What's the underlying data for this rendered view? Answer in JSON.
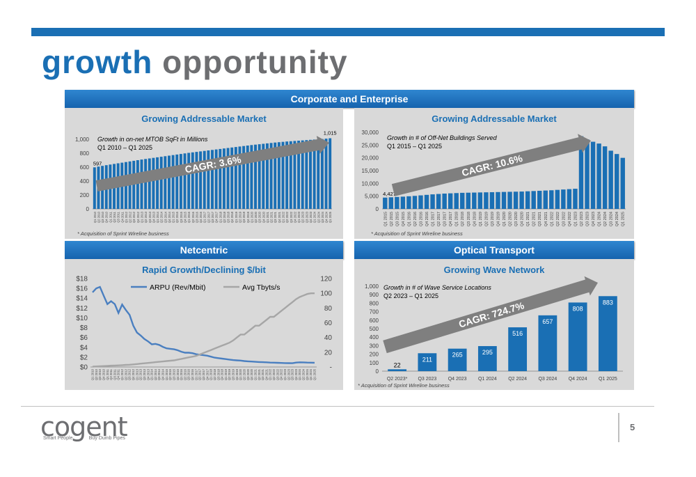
{
  "title": {
    "word1": "growth",
    "word2": "opportunity"
  },
  "headers": {
    "corporate": "Corporate and Enterprise",
    "netcentric": "Netcentric",
    "optical": "Optical Transport"
  },
  "footer": {
    "logo_text": "cogent",
    "tagline_left": "Smart People",
    "tagline_right": "Buy Dumb Pipes",
    "page_number": "5"
  },
  "colors": {
    "bar": "#1a6fb4",
    "line_arpu": "#4a7fc0",
    "line_tbyts": "#a6a6a6",
    "arrow": "#7f7f7f",
    "title_blue": "#1a6fb4"
  },
  "chart_data": [
    {
      "id": "mtob",
      "type": "bar",
      "title": "Growing Addressable Market",
      "annotation_line1": "Growth in on-net MTOB SqFt in Millions",
      "annotation_line2": "Q1 2010 – Q1 2025",
      "cagr": "CAGR: 3.6%",
      "footnote": "* Acquisition of Sprint Wireline business",
      "ylim": [
        0,
        1000
      ],
      "yticks": [
        0,
        200,
        400,
        600,
        800,
        "1,000"
      ],
      "first_label": "597",
      "last_label": "1,015",
      "categories": [
        "Q1 2010",
        "Q2 2010",
        "Q3 2010",
        "Q4 2010",
        "Q1 2011",
        "Q2 2011",
        "Q3 2011",
        "Q4 2011",
        "Q1 2012",
        "Q2 2012",
        "Q3 2012",
        "Q4 2012",
        "Q1 2013",
        "Q2 2013",
        "Q3 2013",
        "Q4 2013",
        "Q1 2014",
        "Q2 2014",
        "Q3 2014",
        "Q4 2014",
        "Q1 2015",
        "Q2 2015",
        "Q3 2015",
        "Q4 2015",
        "Q1 2016",
        "Q2 2016",
        "Q3 2016",
        "Q4 2016",
        "Q1 2017",
        "Q2 2017",
        "Q3 2017",
        "Q4 2017",
        "Q1 2018",
        "Q2 2018",
        "Q3 2018",
        "Q4 2018",
        "Q1 2019",
        "Q2 2019",
        "Q3 2019",
        "Q4 2019",
        "Q1 2020",
        "Q2 2020",
        "Q3 2020",
        "Q4 2020",
        "Q1 2021",
        "Q2 2021",
        "Q3 2021",
        "Q4 2021",
        "Q1 2022",
        "Q2 2022",
        "Q3 2022",
        "Q4 2022",
        "Q1 2023",
        "Q2 2023",
        "Q3 2023",
        "Q4 2023",
        "Q1 2024",
        "Q2 2024",
        "Q3 2024",
        "Q4 2024",
        "Q1 2025"
      ],
      "values": [
        597,
        608,
        618,
        628,
        637,
        646,
        655,
        664,
        673,
        682,
        691,
        700,
        709,
        717,
        725,
        733,
        741,
        749,
        757,
        765,
        773,
        781,
        789,
        797,
        805,
        812,
        819,
        826,
        833,
        840,
        847,
        854,
        861,
        868,
        875,
        882,
        889,
        896,
        903,
        910,
        917,
        923,
        929,
        935,
        941,
        947,
        953,
        958,
        963,
        968,
        972,
        976,
        980,
        984,
        988,
        992,
        996,
        1000,
        1004,
        1009,
        1015
      ]
    },
    {
      "id": "offnet",
      "type": "bar",
      "title": "Growing Addressable Market",
      "annotation_line1": "Growth in # of Off-Net Buildings Served",
      "annotation_line2": "Q1 2015 – Q1 2025",
      "cagr": "CAGR: 10.6%",
      "footnote": "* Acquisition of Sprint Wireline business",
      "ylim": [
        0,
        30000
      ],
      "yticks": [
        "0",
        "5,000",
        "10,000",
        "15,000",
        "20,000",
        "25,000",
        "30,000"
      ],
      "first_label": "4,427",
      "categories": [
        "Q1 2015",
        "Q2 2015",
        "Q3 2015",
        "Q4 2015",
        "Q1 2016",
        "Q2 2016",
        "Q3 2016",
        "Q4 2016",
        "Q1 2017",
        "Q2 2017",
        "Q3 2017",
        "Q4 2017",
        "Q1 2018",
        "Q2 2018",
        "Q3 2018",
        "Q4 2018",
        "Q1 2019",
        "Q2 2019",
        "Q3 2019",
        "Q4 2019",
        "Q1 2020",
        "Q2 2020",
        "Q3 2020",
        "Q4 2020",
        "Q1 2021",
        "Q2 2021",
        "Q3 2021",
        "Q4 2021",
        "Q1 2022",
        "Q2 2022",
        "Q3 2022",
        "Q4 2022",
        "Q1 2023",
        "Q2 2023",
        "Q3 2023",
        "Q4 2023",
        "Q1 2024",
        "Q2 2024",
        "Q3 2024",
        "Q4 2024",
        "Q1 2025"
      ],
      "values": [
        4427,
        4550,
        4680,
        4800,
        4950,
        5100,
        5300,
        5500,
        5700,
        5850,
        6000,
        6100,
        6200,
        6300,
        6350,
        6400,
        6450,
        6500,
        6550,
        6600,
        6650,
        6700,
        6750,
        6800,
        6900,
        7000,
        7100,
        7200,
        7300,
        7450,
        7600,
        7750,
        7900,
        28500,
        27200,
        26300,
        25600,
        24500,
        22800,
        21500,
        20000
      ]
    },
    {
      "id": "arpu",
      "type": "line",
      "title": "Rapid Growth/Declining $/bit",
      "legend": [
        "ARPU (Rev/Mbit)",
        "Avg Tbyts/s"
      ],
      "y_left_ticks": [
        "$0",
        "$2",
        "$4",
        "$6",
        "$8",
        "$10",
        "$12",
        "$14",
        "$16",
        "$18"
      ],
      "y_right_ticks": [
        "-",
        "20",
        "40",
        "60",
        "80",
        "100",
        "120"
      ],
      "ylim_left": [
        0,
        18
      ],
      "ylim_right": [
        0,
        120
      ],
      "categories": [
        "Q1 2010",
        "Q2 2010",
        "Q3 2010",
        "Q4 2010",
        "Q1 2011",
        "Q2 2011",
        "Q3 2011",
        "Q4 2011",
        "Q1 2012",
        "Q2 2012",
        "Q3 2012",
        "Q4 2012",
        "Q1 2013",
        "Q2 2013",
        "Q3 2013",
        "Q4 2013",
        "Q1 2014",
        "Q2 2014",
        "Q3 2014",
        "Q4 2014",
        "Q1 2015",
        "Q2 2015",
        "Q3 2015",
        "Q4 2015",
        "Q1 2016",
        "Q2 2016",
        "Q3 2016",
        "Q4 2016",
        "Q1 2017",
        "Q2 2017",
        "Q3 2017",
        "Q4 2017",
        "Q1 2018",
        "Q2 2018",
        "Q3 2018",
        "Q4 2018",
        "Q1 2019",
        "Q2 2019",
        "Q3 2019",
        "Q4 2019",
        "Q1 2020",
        "Q2 2020",
        "Q3 2020",
        "Q4 2020",
        "Q1 2021",
        "Q2 2021",
        "Q3 2021",
        "Q4 2021",
        "Q1 2022",
        "Q2 2022",
        "Q3 2022",
        "Q4 2022",
        "Q1 2023",
        "Q2 2023",
        "Q3 2023",
        "Q4 2023",
        "Q1 2024",
        "Q2 2024",
        "Q3 2024",
        "Q4 2024",
        "Q1 2025"
      ],
      "series": [
        {
          "name": "ARPU (Rev/Mbit)",
          "axis": "left",
          "values": [
            15.2,
            16.0,
            16.3,
            14.5,
            12.8,
            13.4,
            12.8,
            11.0,
            12.7,
            11.6,
            10.6,
            8.4,
            7.0,
            6.4,
            5.7,
            5.2,
            4.6,
            4.7,
            4.5,
            4.1,
            3.8,
            3.7,
            3.6,
            3.4,
            3.1,
            2.9,
            2.9,
            2.8,
            2.6,
            2.5,
            2.4,
            2.3,
            2.1,
            1.9,
            1.8,
            1.7,
            1.6,
            1.5,
            1.4,
            1.35,
            1.3,
            1.2,
            1.15,
            1.1,
            1.05,
            1.0,
            0.98,
            0.95,
            0.9,
            0.88,
            0.85,
            0.82,
            0.8,
            0.78,
            0.76,
            0.9,
            0.95,
            0.93,
            0.9,
            0.88,
            0.87
          ]
        },
        {
          "name": "Avg Tbyts/s",
          "axis": "right",
          "values": [
            0.5,
            0.8,
            1.0,
            1.2,
            1.5,
            1.8,
            2.0,
            2.2,
            2.5,
            2.8,
            3.0,
            3.5,
            4.0,
            4.5,
            5.0,
            5.5,
            6.0,
            6.5,
            7.0,
            7.5,
            8.0,
            8.5,
            9.0,
            10,
            11,
            12,
            13,
            14,
            15,
            17,
            19,
            21,
            23,
            25,
            27,
            29,
            31,
            33,
            36,
            40,
            44,
            44,
            48,
            52,
            56,
            56,
            60,
            64,
            68,
            68,
            72,
            76,
            80,
            84,
            88,
            92,
            95,
            97,
            99,
            100,
            100
          ]
        }
      ]
    },
    {
      "id": "wave",
      "type": "bar",
      "title": "Growing Wave Network",
      "annotation_line1": "Growth in # of Wave Service Locations",
      "annotation_line2": "Q2 2023 – Q1 2025",
      "cagr": "CAGR: 724.7%",
      "footnote": "* Acquisition of Sprint Wireline business",
      "ylim": [
        0,
        1000
      ],
      "yticks": [
        "0",
        "100",
        "200",
        "300",
        "400",
        "500",
        "600",
        "700",
        "800",
        "900",
        "1,000"
      ],
      "categories": [
        "Q2 2023*",
        "Q3 2023",
        "Q4 2023",
        "Q1 2024",
        "Q2 2024",
        "Q3 2024",
        "Q4 2024",
        "Q1 2025"
      ],
      "values": [
        22,
        211,
        265,
        295,
        516,
        657,
        808,
        883
      ],
      "labels": [
        "22",
        "211",
        "265",
        "295",
        "516",
        "657",
        "808",
        "883"
      ]
    }
  ]
}
